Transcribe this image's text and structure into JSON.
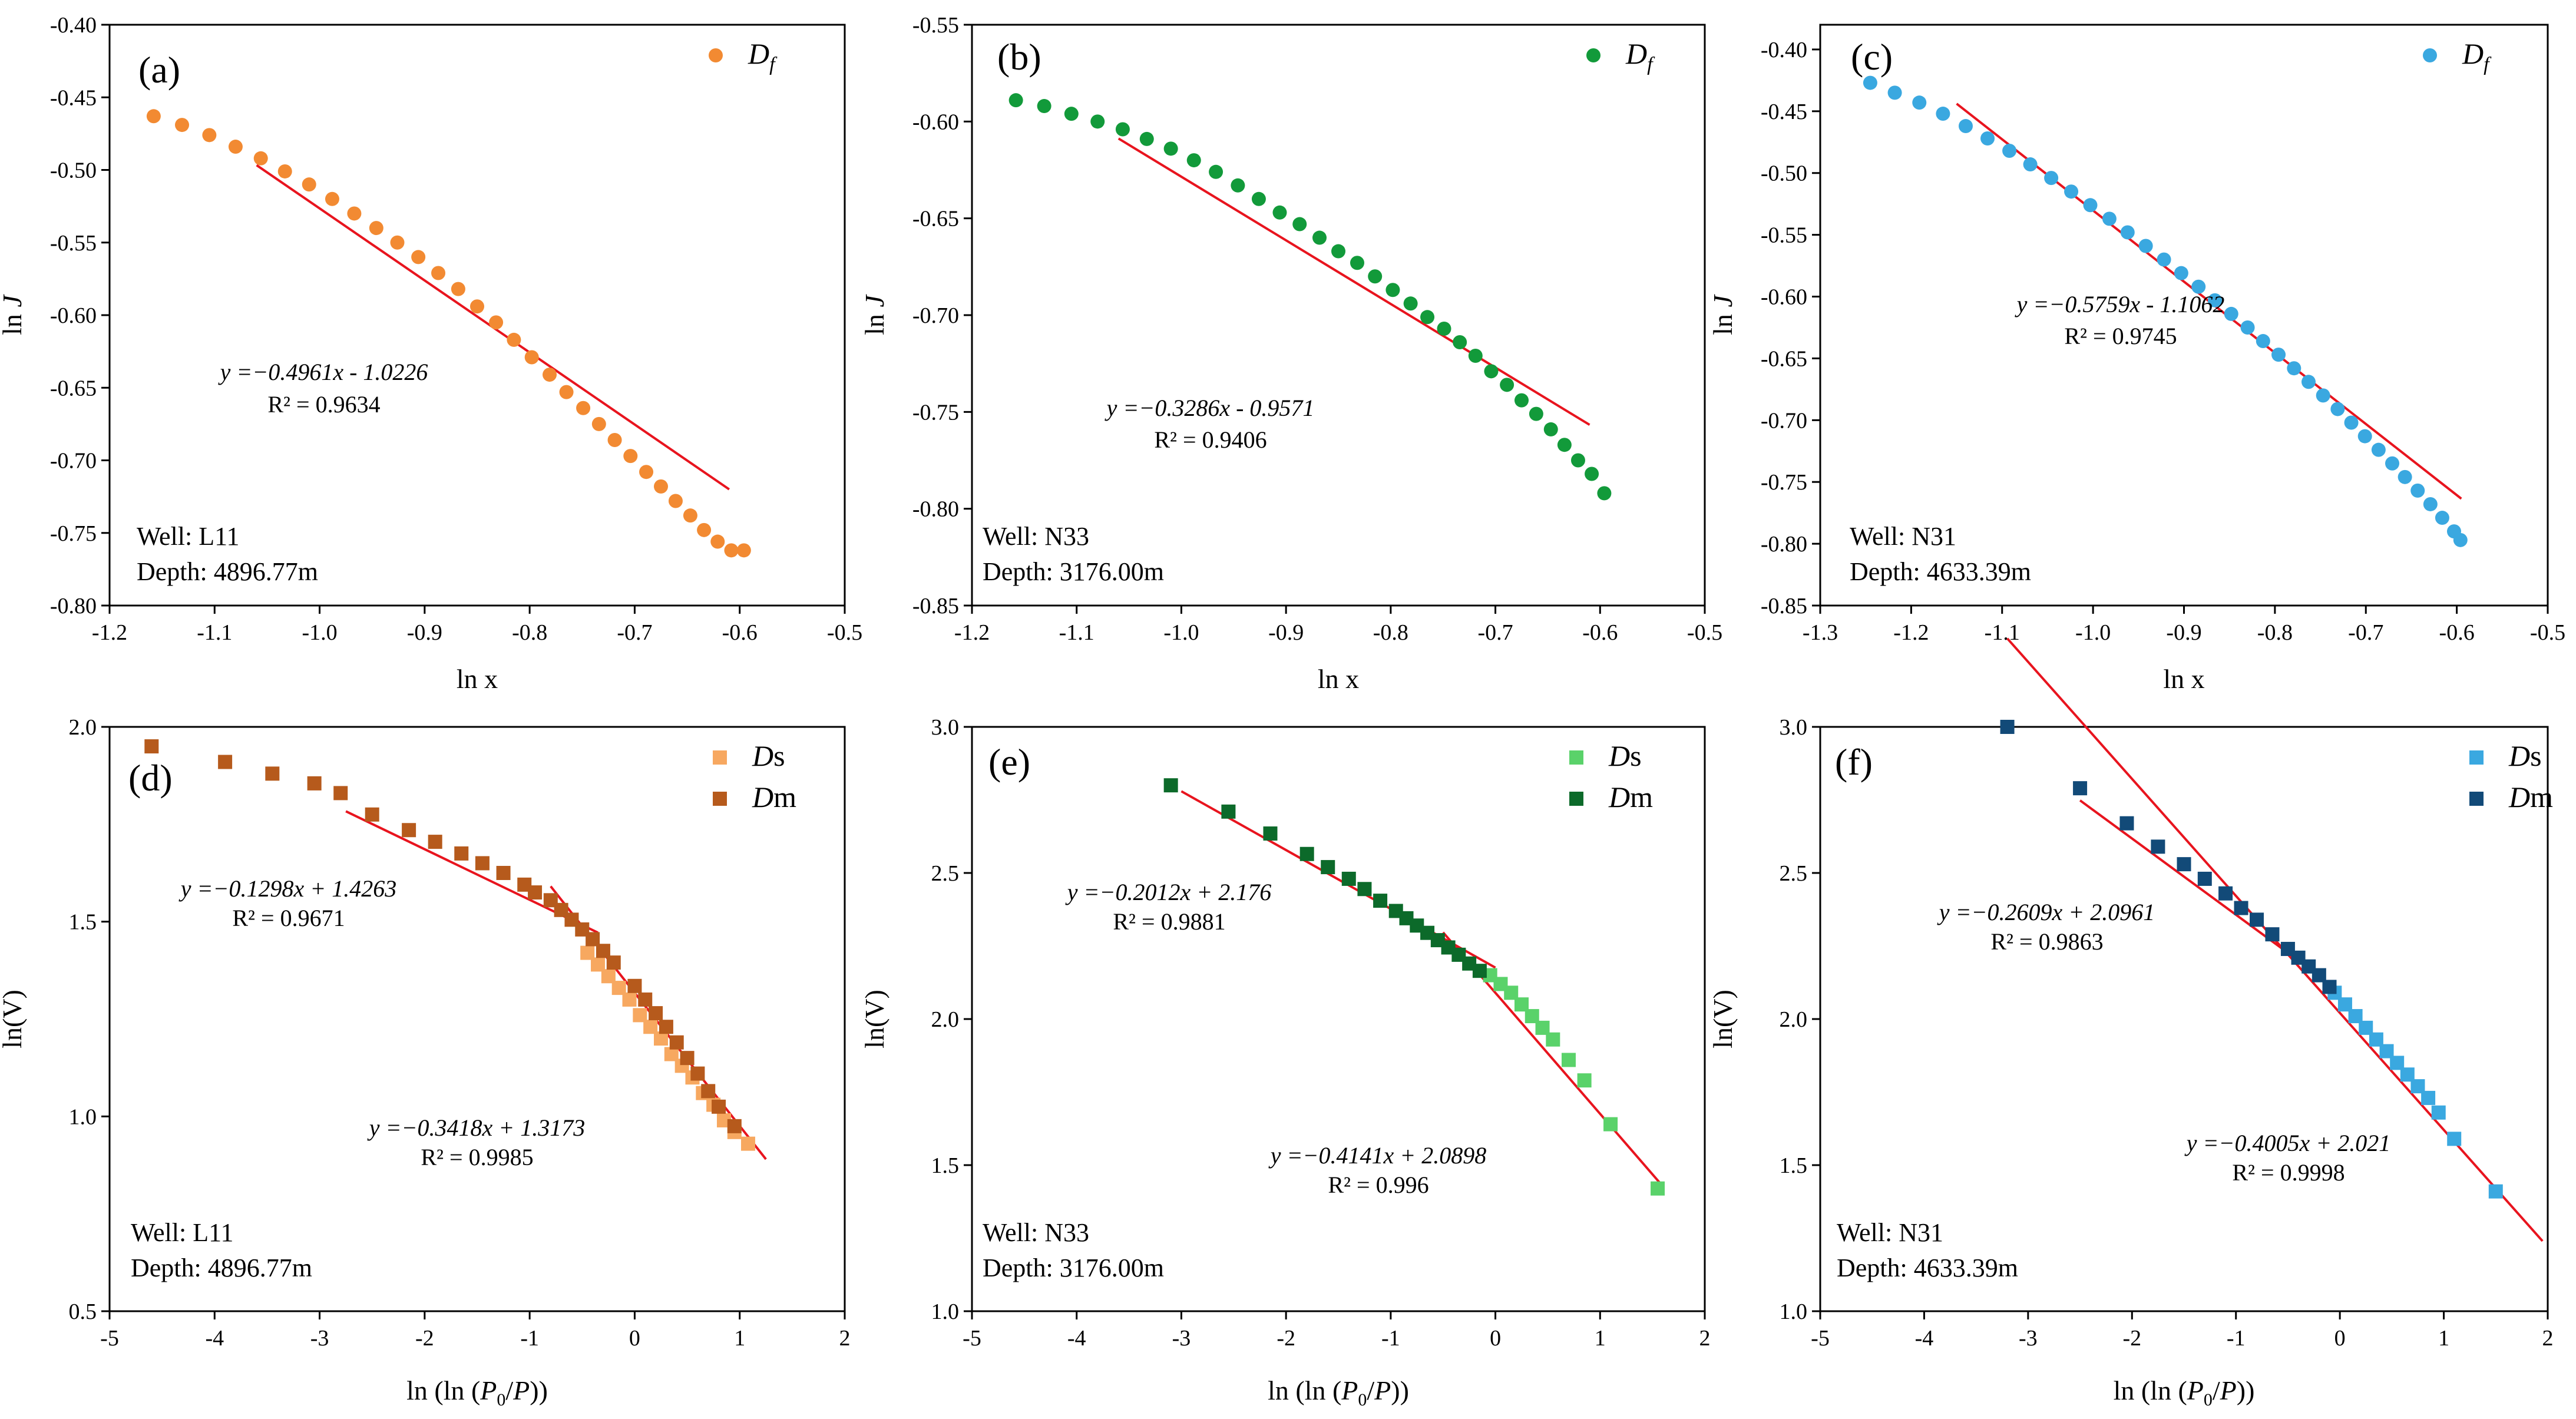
{
  "figure": {
    "title": ""
  },
  "chart_data": [
    {
      "id": "a",
      "type": "scatter",
      "panel_label": "(a)",
      "xlabel": "ln x",
      "ylabel": "ln J",
      "xlim": [
        -1.2,
        -0.5
      ],
      "ylim": [
        -0.8,
        -0.4
      ],
      "xticks": [
        -1.2,
        -1.1,
        -1.0,
        -0.9,
        -0.8,
        -0.7,
        -0.6,
        -0.5
      ],
      "yticks": [
        -0.8,
        -0.75,
        -0.7,
        -0.65,
        -0.6,
        -0.55,
        -0.5,
        -0.45,
        -0.4
      ],
      "xtick_labels": [
        "-1.2",
        "-1.1",
        "-1.0",
        "-0.9",
        "-0.8",
        "-0.7",
        "-0.6",
        "-0.5"
      ],
      "ytick_labels": [
        "-0.80",
        "-0.75",
        "-0.70",
        "-0.65",
        "-0.60",
        "-0.55",
        "-0.50",
        "-0.45",
        "-0.40"
      ],
      "legend": [
        {
          "label": "Df",
          "color": "#f28a32",
          "marker": "circle"
        }
      ],
      "well": "Well: L11",
      "depth": "Depth: 4896.77m",
      "series": [
        {
          "name": "Df",
          "color": "#f28a32",
          "marker": "circle",
          "x": [
            -1.158,
            -1.131,
            -1.105,
            -1.08,
            -1.056,
            -1.033,
            -1.01,
            -0.988,
            -0.967,
            -0.946,
            -0.926,
            -0.906,
            -0.887,
            -0.868,
            -0.85,
            -0.832,
            -0.815,
            -0.798,
            -0.781,
            -0.765,
            -0.749,
            -0.734,
            -0.719,
            -0.704,
            -0.689,
            -0.675,
            -0.661,
            -0.647,
            -0.634,
            -0.621,
            -0.608,
            -0.596
          ],
          "y": [
            -0.463,
            -0.469,
            -0.476,
            -0.484,
            -0.492,
            -0.501,
            -0.51,
            -0.52,
            -0.53,
            -0.54,
            -0.55,
            -0.56,
            -0.571,
            -0.582,
            -0.594,
            -0.605,
            -0.617,
            -0.629,
            -0.641,
            -0.653,
            -0.664,
            -0.675,
            -0.686,
            -0.697,
            -0.708,
            -0.718,
            -0.728,
            -0.738,
            -0.748,
            -0.756,
            -0.762,
            -0.762
          ]
        }
      ],
      "fits": [
        {
          "slope": -0.4961,
          "intercept": -1.0226,
          "x_range": [
            -1.06,
            -0.61
          ],
          "color": "#e8141e",
          "eq_text": "y =−0.4961x - 1.0226",
          "r2_text": "R² = 0.9634"
        }
      ]
    },
    {
      "id": "b",
      "type": "scatter",
      "panel_label": "(b)",
      "xlabel": "ln x",
      "ylabel": "ln J",
      "xlim": [
        -1.2,
        -0.5
      ],
      "ylim": [
        -0.85,
        -0.55
      ],
      "xticks": [
        -1.2,
        -1.1,
        -1.0,
        -0.9,
        -0.8,
        -0.7,
        -0.6,
        -0.5
      ],
      "yticks": [
        -0.85,
        -0.8,
        -0.75,
        -0.7,
        -0.65,
        -0.6,
        -0.55
      ],
      "xtick_labels": [
        "-1.2",
        "-1.1",
        "-1.0",
        "-0.9",
        "-0.8",
        "-0.7",
        "-0.6",
        "-0.5"
      ],
      "ytick_labels": [
        "-0.85",
        "-0.80",
        "-0.75",
        "-0.70",
        "-0.65",
        "-0.60",
        "-0.55"
      ],
      "legend": [
        {
          "label": "Df",
          "color": "#129a3a",
          "marker": "circle"
        }
      ],
      "well": "Well: N33",
      "depth": "Depth: 3176.00m",
      "series": [
        {
          "name": "Df",
          "color": "#129a3a",
          "marker": "circle",
          "x": [
            -1.158,
            -1.131,
            -1.105,
            -1.08,
            -1.056,
            -1.033,
            -1.01,
            -0.988,
            -0.967,
            -0.946,
            -0.926,
            -0.906,
            -0.887,
            -0.868,
            -0.85,
            -0.832,
            -0.815,
            -0.798,
            -0.781,
            -0.765,
            -0.749,
            -0.734,
            -0.719,
            -0.704,
            -0.689,
            -0.675,
            -0.661,
            -0.647,
            -0.634,
            -0.621,
            -0.608,
            -0.596
          ],
          "y": [
            -0.589,
            -0.592,
            -0.596,
            -0.6,
            -0.604,
            -0.609,
            -0.614,
            -0.62,
            -0.626,
            -0.633,
            -0.64,
            -0.647,
            -0.653,
            -0.66,
            -0.667,
            -0.673,
            -0.68,
            -0.687,
            -0.694,
            -0.701,
            -0.707,
            -0.714,
            -0.721,
            -0.729,
            -0.736,
            -0.744,
            -0.751,
            -0.759,
            -0.767,
            -0.775,
            -0.782,
            -0.792
          ]
        }
      ],
      "fits": [
        {
          "slope": -0.3286,
          "intercept": -0.9571,
          "x_range": [
            -1.06,
            -0.61
          ],
          "color": "#e8141e",
          "eq_text": "y =−0.3286x - 0.9571",
          "r2_text": "R² = 0.9406"
        }
      ]
    },
    {
      "id": "c",
      "type": "scatter",
      "panel_label": "(c)",
      "xlabel": "ln x",
      "ylabel": "ln J",
      "xlim": [
        -1.3,
        -0.5
      ],
      "ylim": [
        -0.85,
        -0.38
      ],
      "xticks": [
        -1.3,
        -1.2,
        -1.1,
        -1.0,
        -0.9,
        -0.8,
        -0.7,
        -0.6,
        -0.5
      ],
      "yticks": [
        -0.85,
        -0.8,
        -0.75,
        -0.7,
        -0.65,
        -0.6,
        -0.55,
        -0.5,
        -0.45,
        -0.4
      ],
      "xtick_labels": [
        "-1.3",
        "-1.2",
        "-1.1",
        "-1.0",
        "-0.9",
        "-0.8",
        "-0.7",
        "-0.6",
        "-0.5"
      ],
      "ytick_labels": [
        "-0.85",
        "-0.80",
        "-0.75",
        "-0.70",
        "-0.65",
        "-0.60",
        "-0.55",
        "-0.50",
        "-0.45",
        "-0.40"
      ],
      "legend": [
        {
          "label": "Df",
          "color": "#3aa8e0",
          "marker": "circle"
        }
      ],
      "well": "Well: N31",
      "depth": "Depth: 4633.39m",
      "series": [
        {
          "name": "Df",
          "color": "#3aa8e0",
          "marker": "circle",
          "x": [
            -1.245,
            -1.218,
            -1.191,
            -1.165,
            -1.14,
            -1.116,
            -1.092,
            -1.069,
            -1.046,
            -1.024,
            -1.003,
            -0.982,
            -0.962,
            -0.942,
            -0.922,
            -0.903,
            -0.884,
            -0.866,
            -0.848,
            -0.83,
            -0.813,
            -0.796,
            -0.779,
            -0.763,
            -0.747,
            -0.731,
            -0.716,
            -0.701,
            -0.686,
            -0.671,
            -0.657,
            -0.643,
            -0.629,
            -0.616,
            -0.603,
            -0.596
          ],
          "y": [
            -0.427,
            -0.435,
            -0.443,
            -0.452,
            -0.462,
            -0.472,
            -0.482,
            -0.493,
            -0.504,
            -0.515,
            -0.526,
            -0.537,
            -0.548,
            -0.559,
            -0.57,
            -0.581,
            -0.592,
            -0.603,
            -0.614,
            -0.625,
            -0.636,
            -0.647,
            -0.658,
            -0.669,
            -0.68,
            -0.691,
            -0.702,
            -0.713,
            -0.724,
            -0.735,
            -0.746,
            -0.757,
            -0.768,
            -0.779,
            -0.79,
            -0.797
          ]
        }
      ],
      "fits": [
        {
          "slope": -0.5759,
          "intercept": -1.1062,
          "x_range": [
            -1.15,
            -0.595
          ],
          "color": "#e8141e",
          "eq_text": "y =−0.5759x - 1.1062",
          "r2_text": "R² = 0.9745"
        }
      ]
    },
    {
      "id": "d",
      "type": "scatter",
      "panel_label": "(d)",
      "xlabel": "ln (ln (P0/P))",
      "ylabel": "ln(V)",
      "xlim": [
        -5,
        2
      ],
      "ylim": [
        0.5,
        2.0
      ],
      "xticks": [
        -5,
        -4,
        -3,
        -2,
        -1,
        0,
        1,
        2
      ],
      "yticks": [
        0.5,
        1.0,
        1.5,
        2.0
      ],
      "xtick_labels": [
        "-5",
        "-4",
        "-3",
        "-2",
        "-1",
        "0",
        "1",
        "2"
      ],
      "ytick_labels": [
        "0.5",
        "1.0",
        "1.5",
        "2.0"
      ],
      "legend": [
        {
          "label": "Ds",
          "color": "#f7a860",
          "marker": "square"
        },
        {
          "label": "Dm",
          "color": "#b65a1c",
          "marker": "square"
        }
      ],
      "well": "Well: L11",
      "depth": "Depth: 4896.77m",
      "series": [
        {
          "name": "Ds",
          "color": "#f7a860",
          "marker": "square",
          "x": [
            -0.45,
            -0.35,
            -0.25,
            -0.15,
            -0.05,
            0.05,
            0.15,
            0.25,
            0.35,
            0.45,
            0.55,
            0.65,
            0.75,
            0.85,
            0.95,
            1.08
          ],
          "y": [
            1.42,
            1.39,
            1.36,
            1.33,
            1.3,
            1.26,
            1.23,
            1.2,
            1.16,
            1.13,
            1.1,
            1.06,
            1.03,
            0.99,
            0.96,
            0.93
          ]
        },
        {
          "name": "Dm",
          "color": "#b65a1c",
          "marker": "square",
          "x": [
            -4.6,
            -3.9,
            -3.45,
            -3.05,
            -2.8,
            -2.5,
            -2.15,
            -1.9,
            -1.65,
            -1.45,
            -1.25,
            -1.05,
            -0.95,
            -0.8,
            -0.7,
            -0.6,
            -0.5,
            -0.4,
            -0.3,
            -0.2,
            0.0,
            0.1,
            0.2,
            0.3,
            0.4,
            0.5,
            0.6,
            0.7,
            0.8,
            0.95
          ],
          "y": [
            1.95,
            1.91,
            1.88,
            1.855,
            1.83,
            1.775,
            1.735,
            1.705,
            1.675,
            1.65,
            1.625,
            1.595,
            1.575,
            1.555,
            1.53,
            1.505,
            1.48,
            1.455,
            1.425,
            1.395,
            1.335,
            1.3,
            1.265,
            1.23,
            1.19,
            1.15,
            1.11,
            1.065,
            1.025,
            0.975
          ]
        }
      ],
      "fits": [
        {
          "slope": -0.1298,
          "intercept": 1.4263,
          "x_range": [
            -2.75,
            -0.35
          ],
          "color": "#e8141e",
          "eq_text": "y =−0.1298x + 1.4263",
          "r2_text": "R² = 0.9671"
        },
        {
          "slope": -0.3418,
          "intercept": 1.3173,
          "x_range": [
            -0.8,
            1.25
          ],
          "color": "#e8141e",
          "eq_text": "y =−0.3418x + 1.3173",
          "r2_text": "R² = 0.9985"
        }
      ]
    },
    {
      "id": "e",
      "type": "scatter",
      "panel_label": "(e)",
      "xlabel": "ln (ln (P0/P))",
      "ylabel": "ln(V)",
      "xlim": [
        -5,
        2
      ],
      "ylim": [
        1.0,
        3.0
      ],
      "xticks": [
        -5,
        -4,
        -3,
        -2,
        -1,
        0,
        1,
        2
      ],
      "yticks": [
        1.0,
        1.5,
        2.0,
        2.5,
        3.0
      ],
      "xtick_labels": [
        "-5",
        "-4",
        "-3",
        "-2",
        "-1",
        "0",
        "1",
        "2"
      ],
      "ytick_labels": [
        "1.0",
        "1.5",
        "2.0",
        "2.5",
        "3.0"
      ],
      "legend": [
        {
          "label": "Ds",
          "color": "#5ad26a",
          "marker": "square"
        },
        {
          "label": "Dm",
          "color": "#0c6a2a",
          "marker": "square"
        }
      ],
      "well": "Well: N33",
      "depth": "Depth: 3176.00m",
      "series": [
        {
          "name": "Ds",
          "color": "#5ad26a",
          "marker": "square",
          "x": [
            -0.05,
            0.05,
            0.15,
            0.25,
            0.35,
            0.45,
            0.55,
            0.7,
            0.85,
            1.1,
            1.55
          ],
          "y": [
            2.15,
            2.12,
            2.09,
            2.05,
            2.01,
            1.97,
            1.93,
            1.86,
            1.79,
            1.64,
            1.42
          ]
        },
        {
          "name": "Dm",
          "color": "#0c6a2a",
          "marker": "square",
          "x": [
            -3.1,
            -2.55,
            -2.15,
            -1.8,
            -1.6,
            -1.4,
            -1.25,
            -1.1,
            -0.95,
            -0.85,
            -0.75,
            -0.65,
            -0.55,
            -0.45,
            -0.35,
            -0.25,
            -0.15
          ],
          "y": [
            2.8,
            2.71,
            2.635,
            2.565,
            2.52,
            2.48,
            2.445,
            2.405,
            2.37,
            2.345,
            2.32,
            2.295,
            2.27,
            2.245,
            2.22,
            2.19,
            2.165
          ]
        }
      ],
      "fits": [
        {
          "slope": -0.2012,
          "intercept": 2.176,
          "x_range": [
            -3.0,
            0.0
          ],
          "color": "#e8141e",
          "eq_text": "y =−0.2012x + 2.176",
          "r2_text": "R² = 0.9881"
        },
        {
          "slope": -0.4141,
          "intercept": 2.0898,
          "x_range": [
            -0.5,
            1.6
          ],
          "color": "#e8141e",
          "eq_text": "y =−0.4141x + 2.0898",
          "r2_text": "R² = 0.996"
        }
      ]
    },
    {
      "id": "f",
      "type": "scatter",
      "panel_label": "(f)",
      "xlabel": "ln (ln (P0/P))",
      "ylabel": "ln(V)",
      "xlim": [
        -5,
        2
      ],
      "ylim": [
        1.0,
        3.0
      ],
      "xticks": [
        -5,
        -4,
        -3,
        -2,
        -1,
        0,
        1,
        2
      ],
      "yticks": [
        1.0,
        1.5,
        2.0,
        2.5,
        3.0
      ],
      "xtick_labels": [
        "-5",
        "-4",
        "-3",
        "-2",
        "-1",
        "0",
        "1",
        "2"
      ],
      "ytick_labels": [
        "1.0",
        "1.5",
        "2.0",
        "2.5",
        "3.0"
      ],
      "legend": [
        {
          "label": "Ds",
          "color": "#3aa8e0",
          "marker": "square"
        },
        {
          "label": "Dm",
          "color": "#124a78",
          "marker": "square"
        }
      ],
      "well": "Well: N31",
      "depth": "Depth: 4633.39m",
      "series": [
        {
          "name": "Ds",
          "color": "#3aa8e0",
          "marker": "square",
          "x": [
            -0.05,
            0.05,
            0.15,
            0.25,
            0.35,
            0.45,
            0.55,
            0.65,
            0.75,
            0.85,
            0.95,
            1.1,
            1.5
          ],
          "y": [
            2.09,
            2.05,
            2.01,
            1.97,
            1.93,
            1.89,
            1.85,
            1.81,
            1.77,
            1.73,
            1.68,
            1.59,
            1.41
          ]
        },
        {
          "name": "Dm",
          "color": "#124a78",
          "marker": "square",
          "x": [
            -3.2,
            -2.5,
            -2.05,
            -1.75,
            -1.5,
            -1.3,
            -1.1,
            -0.95,
            -0.8,
            -0.65,
            -0.5,
            -0.4,
            -0.3,
            -0.2,
            -0.1
          ],
          "y": [
            3.0,
            2.79,
            2.67,
            2.59,
            2.53,
            2.48,
            2.43,
            2.38,
            2.34,
            2.29,
            2.24,
            2.21,
            2.18,
            2.15,
            2.11
          ]
        }
      ],
      "fits": [
        {
          "slope": -0.2609,
          "intercept": 2.0961,
          "x_range": [
            -2.5,
            -0.2
          ],
          "color": "#e8141e",
          "eq_text": "y =−0.2609x + 2.0961",
          "r2_text": "R² = 0.9863"
        },
        {
          "slope": -0.4005,
          "intercept": 2.021,
          "x_range": [
            -3.2,
            1.95
          ],
          "color": "#e8141e",
          "eq_text": "y =−0.4005x + 2.021",
          "r2_text": "R² = 0.9998"
        }
      ]
    }
  ]
}
